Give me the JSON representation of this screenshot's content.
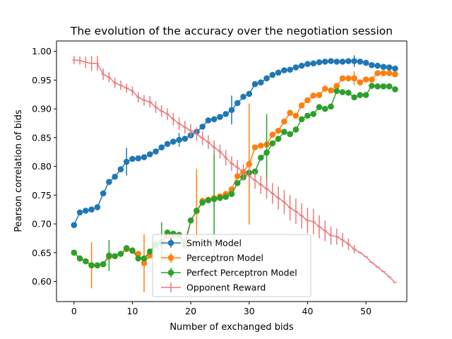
{
  "chart_data": {
    "type": "line",
    "title": "The evolution of the accuracy over the negotiation session",
    "xlabel": "Number of exchanged bids",
    "ylabel": "Pearson correlation of bids",
    "xlim": [
      -3,
      57
    ],
    "ylim": [
      0.565,
      1.018
    ],
    "xticks": [
      0,
      10,
      20,
      30,
      40,
      50
    ],
    "yticks": [
      0.6,
      0.65,
      0.7,
      0.75,
      0.8,
      0.85,
      0.9,
      0.95,
      1.0
    ],
    "xtick_labels": [
      "0",
      "10",
      "20",
      "30",
      "40",
      "50"
    ],
    "ytick_labels": [
      "0.60",
      "0.65",
      "0.70",
      "0.75",
      "0.80",
      "0.85",
      "0.90",
      "0.95",
      "1.00"
    ],
    "legend": {
      "placement": "lower-center"
    },
    "series": [
      {
        "name": "Smith Model",
        "color": "#1f77b4",
        "marker": "circle",
        "x": [
          0,
          1,
          2,
          3,
          4,
          5,
          6,
          7,
          8,
          9,
          10,
          11,
          12,
          13,
          14,
          15,
          16,
          17,
          18,
          19,
          20,
          21,
          22,
          23,
          24,
          25,
          26,
          27,
          28,
          29,
          30,
          31,
          32,
          33,
          34,
          35,
          36,
          37,
          38,
          39,
          40,
          41,
          42,
          43,
          44,
          45,
          46,
          47,
          48,
          49,
          50,
          51,
          52,
          53,
          54,
          55
        ],
        "values": [
          0.698,
          0.72,
          0.723,
          0.725,
          0.729,
          0.753,
          0.773,
          0.782,
          0.795,
          0.808,
          0.813,
          0.814,
          0.816,
          0.821,
          0.826,
          0.833,
          0.839,
          0.843,
          0.846,
          0.848,
          0.854,
          0.86,
          0.869,
          0.88,
          0.882,
          0.886,
          0.891,
          0.898,
          0.91,
          0.921,
          0.926,
          0.943,
          0.946,
          0.953,
          0.959,
          0.963,
          0.967,
          0.968,
          0.972,
          0.975,
          0.978,
          0.979,
          0.981,
          0.982,
          0.983,
          0.982,
          0.982,
          0.983,
          0.983,
          0.982,
          0.98,
          0.976,
          0.975,
          0.973,
          0.972,
          0.97
        ],
        "errors": [
          0,
          0,
          0,
          0,
          0,
          0,
          0,
          0,
          0,
          0.024,
          0,
          0,
          0,
          0,
          0,
          0,
          0,
          0,
          0.012,
          0,
          0,
          0,
          0,
          0,
          0,
          0,
          0,
          0.025,
          0,
          0,
          0,
          0,
          0,
          0,
          0,
          0,
          0,
          0,
          0,
          0,
          0,
          0,
          0,
          0,
          0,
          0,
          0,
          0,
          0.01,
          0,
          0,
          0,
          0,
          0,
          0,
          0
        ]
      },
      {
        "name": "Perceptron Model",
        "color": "#ff7f0e",
        "marker": "circle",
        "x": [
          0,
          1,
          2,
          3,
          4,
          5,
          6,
          7,
          8,
          9,
          10,
          11,
          12,
          13,
          14,
          15,
          16,
          17,
          18,
          19,
          20,
          21,
          22,
          23,
          24,
          25,
          26,
          27,
          28,
          29,
          30,
          31,
          32,
          33,
          34,
          35,
          36,
          37,
          38,
          39,
          40,
          41,
          42,
          43,
          44,
          45,
          46,
          47,
          48,
          49,
          50,
          51,
          52,
          53,
          54,
          55
        ],
        "values": [
          0.65,
          0.64,
          0.635,
          0.628,
          0.628,
          0.63,
          0.643,
          0.644,
          0.648,
          0.656,
          0.653,
          0.648,
          0.632,
          0.645,
          0.663,
          0.666,
          0.679,
          0.68,
          0.68,
          0.668,
          0.706,
          0.722,
          0.74,
          0.742,
          0.745,
          0.748,
          0.752,
          0.76,
          0.783,
          0.79,
          0.804,
          0.833,
          0.836,
          0.838,
          0.855,
          0.862,
          0.878,
          0.893,
          0.888,
          0.906,
          0.915,
          0.923,
          0.924,
          0.935,
          0.932,
          0.94,
          0.953,
          0.953,
          0.953,
          0.946,
          0.951,
          0.951,
          0.962,
          0.962,
          0.962,
          0.96
        ],
        "errors": [
          0,
          0,
          0,
          0.04,
          0,
          0,
          0,
          0,
          0,
          0,
          0,
          0,
          0.05,
          0,
          0,
          0,
          0,
          0,
          0,
          0,
          0,
          0.073,
          0,
          0,
          0,
          0,
          0,
          0,
          0,
          0,
          0.105,
          0,
          0,
          0,
          0,
          0,
          0,
          0,
          0,
          0,
          0,
          0,
          0,
          0,
          0,
          0,
          0,
          0,
          0.012,
          0,
          0,
          0,
          0,
          0,
          0,
          0
        ]
      },
      {
        "name": "Perfect Perceptron Model",
        "color": "#2ca02c",
        "marker": "circle",
        "x": [
          0,
          1,
          2,
          3,
          4,
          5,
          6,
          7,
          8,
          9,
          10,
          11,
          12,
          13,
          14,
          15,
          16,
          17,
          18,
          19,
          20,
          21,
          22,
          23,
          24,
          25,
          26,
          27,
          28,
          29,
          30,
          31,
          32,
          33,
          34,
          35,
          36,
          37,
          38,
          39,
          40,
          41,
          42,
          43,
          44,
          45,
          46,
          47,
          48,
          49,
          50,
          51,
          52,
          53,
          54,
          55
        ],
        "values": [
          0.65,
          0.64,
          0.635,
          0.628,
          0.628,
          0.63,
          0.645,
          0.644,
          0.648,
          0.658,
          0.654,
          0.64,
          0.64,
          0.652,
          0.664,
          0.668,
          0.685,
          0.683,
          0.681,
          0.663,
          0.706,
          0.723,
          0.737,
          0.741,
          0.743,
          0.745,
          0.747,
          0.752,
          0.771,
          0.781,
          0.789,
          0.791,
          0.815,
          0.824,
          0.84,
          0.848,
          0.86,
          0.856,
          0.864,
          0.882,
          0.888,
          0.891,
          0.903,
          0.9,
          0.904,
          0.931,
          0.929,
          0.928,
          0.92,
          0.924,
          0.924,
          0.94,
          0.939,
          0.939,
          0.939,
          0.934
        ],
        "errors": [
          0,
          0,
          0,
          0,
          0,
          0,
          0.027,
          0,
          0,
          0,
          0,
          0,
          0,
          0,
          0,
          0.035,
          0,
          0,
          0,
          0,
          0,
          0,
          0,
          0,
          0.1,
          0,
          0,
          0,
          0,
          0,
          0,
          0,
          0,
          0.067,
          0,
          0,
          0,
          0,
          0,
          0,
          0,
          0,
          0,
          0,
          0,
          0,
          0,
          0,
          0,
          0,
          0,
          0,
          0,
          0,
          0,
          0
        ]
      },
      {
        "name": "Opponent Reward",
        "color": "#e8797b",
        "marker": "plus",
        "x": [
          0,
          1,
          2,
          3,
          4,
          5,
          6,
          7,
          8,
          9,
          10,
          11,
          12,
          13,
          14,
          15,
          16,
          17,
          18,
          19,
          20,
          21,
          22,
          23,
          24,
          25,
          26,
          27,
          28,
          29,
          30,
          31,
          32,
          33,
          34,
          35,
          36,
          37,
          38,
          39,
          40,
          41,
          42,
          43,
          44,
          45,
          46,
          47,
          48,
          49,
          50,
          51,
          52,
          53,
          54,
          55
        ],
        "values": [
          0.985,
          0.984,
          0.981,
          0.979,
          0.979,
          0.96,
          0.955,
          0.945,
          0.941,
          0.936,
          0.931,
          0.92,
          0.915,
          0.912,
          0.903,
          0.896,
          0.891,
          0.882,
          0.874,
          0.868,
          0.862,
          0.856,
          0.849,
          0.842,
          0.833,
          0.826,
          0.815,
          0.805,
          0.798,
          0.79,
          0.783,
          0.776,
          0.768,
          0.761,
          0.753,
          0.745,
          0.738,
          0.728,
          0.722,
          0.714,
          0.706,
          0.704,
          0.695,
          0.688,
          0.68,
          0.678,
          0.672,
          0.665,
          0.656,
          0.65,
          0.643,
          0.633,
          0.625,
          0.617,
          0.608,
          0.598
        ],
        "errors": [
          0.007,
          0.007,
          0.01,
          0.013,
          0.013,
          0.01,
          0.009,
          0.009,
          0.008,
          0.008,
          0.008,
          0.009,
          0.009,
          0.01,
          0.01,
          0.01,
          0.01,
          0.011,
          0.011,
          0.011,
          0.011,
          0.012,
          0.012,
          0.012,
          0.012,
          0.012,
          0.013,
          0.013,
          0.013,
          0.014,
          0.014,
          0.015,
          0.016,
          0.017,
          0.018,
          0.02,
          0.021,
          0.022,
          0.022,
          0.022,
          0.022,
          0.022,
          0.02,
          0.018,
          0.016,
          0.014,
          0.012,
          0.01,
          0.007,
          0,
          0,
          0,
          0,
          0,
          0,
          0
        ]
      }
    ]
  }
}
